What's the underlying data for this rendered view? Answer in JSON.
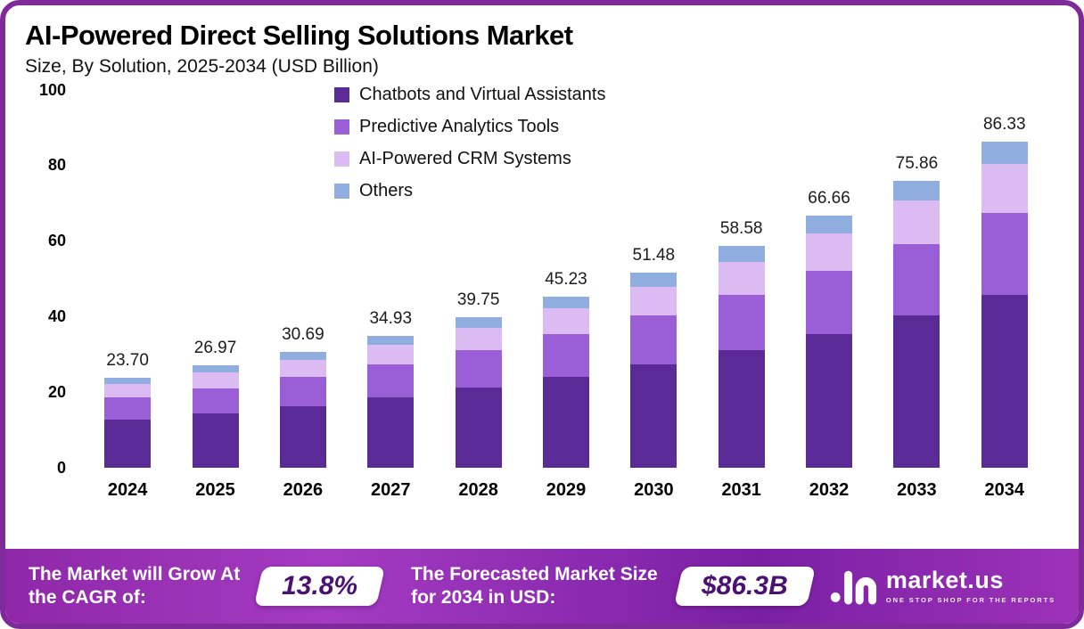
{
  "title": "AI-Powered Direct Selling Solutions Market",
  "subtitle": "Size, By Solution, 2025-2034 (USD Billion)",
  "chart_data": {
    "type": "bar",
    "stacked": true,
    "title": "AI-Powered Direct Selling Solutions Market Size, By Solution, 2025-2034 (USD Billion)",
    "categories": [
      "2024",
      "2025",
      "2026",
      "2027",
      "2028",
      "2029",
      "2030",
      "2031",
      "2032",
      "2033",
      "2034"
    ],
    "totals": [
      "23.70",
      "26.97",
      "30.69",
      "34.93",
      "39.75",
      "45.23",
      "51.48",
      "58.58",
      "66.66",
      "75.86",
      "86.33"
    ],
    "series": [
      {
        "name": "Chatbots and Virtual Assistants",
        "color": "#5A2B97",
        "values": [
          12.56,
          14.29,
          16.27,
          18.51,
          21.07,
          23.97,
          27.28,
          31.05,
          35.33,
          40.21,
          45.75
        ]
      },
      {
        "name": "Predictive Analytics Tools",
        "color": "#9A5FD6",
        "values": [
          5.93,
          6.74,
          7.67,
          8.73,
          9.94,
          11.31,
          12.87,
          14.65,
          16.67,
          18.97,
          21.58
        ]
      },
      {
        "name": "AI-Powered CRM Systems",
        "color": "#DCBBF2",
        "values": [
          3.56,
          4.05,
          4.6,
          5.24,
          5.96,
          6.78,
          7.72,
          8.79,
          10.0,
          11.38,
          12.95
        ]
      },
      {
        "name": "Others",
        "color": "#8FAEDF",
        "values": [
          1.65,
          1.89,
          2.15,
          2.45,
          2.78,
          3.17,
          3.61,
          4.09,
          4.66,
          5.3,
          6.05
        ]
      }
    ],
    "xlabel": "",
    "ylabel": "",
    "ylim": [
      0,
      100
    ],
    "yticks": [
      0,
      20,
      40,
      60,
      80,
      100
    ],
    "grid": false,
    "legend_position": "top-center"
  },
  "footer": {
    "cagr_label": "The Market will Grow At the CAGR of:",
    "cagr_value": "13.8%",
    "forecast_label": "The Forecasted Market Size for 2034 in USD:",
    "forecast_value": "$86.3B",
    "brand": "market.us",
    "brand_tagline": "ONE STOP SHOP FOR THE REPORTS"
  },
  "colors": {
    "frame_border": "#7E2A9B",
    "footer_gradient_start": "#8E28A8",
    "footer_gradient_end": "#9C32B8",
    "pill_text": "#4A1173",
    "bar_label_text": "#1b1b1b"
  }
}
